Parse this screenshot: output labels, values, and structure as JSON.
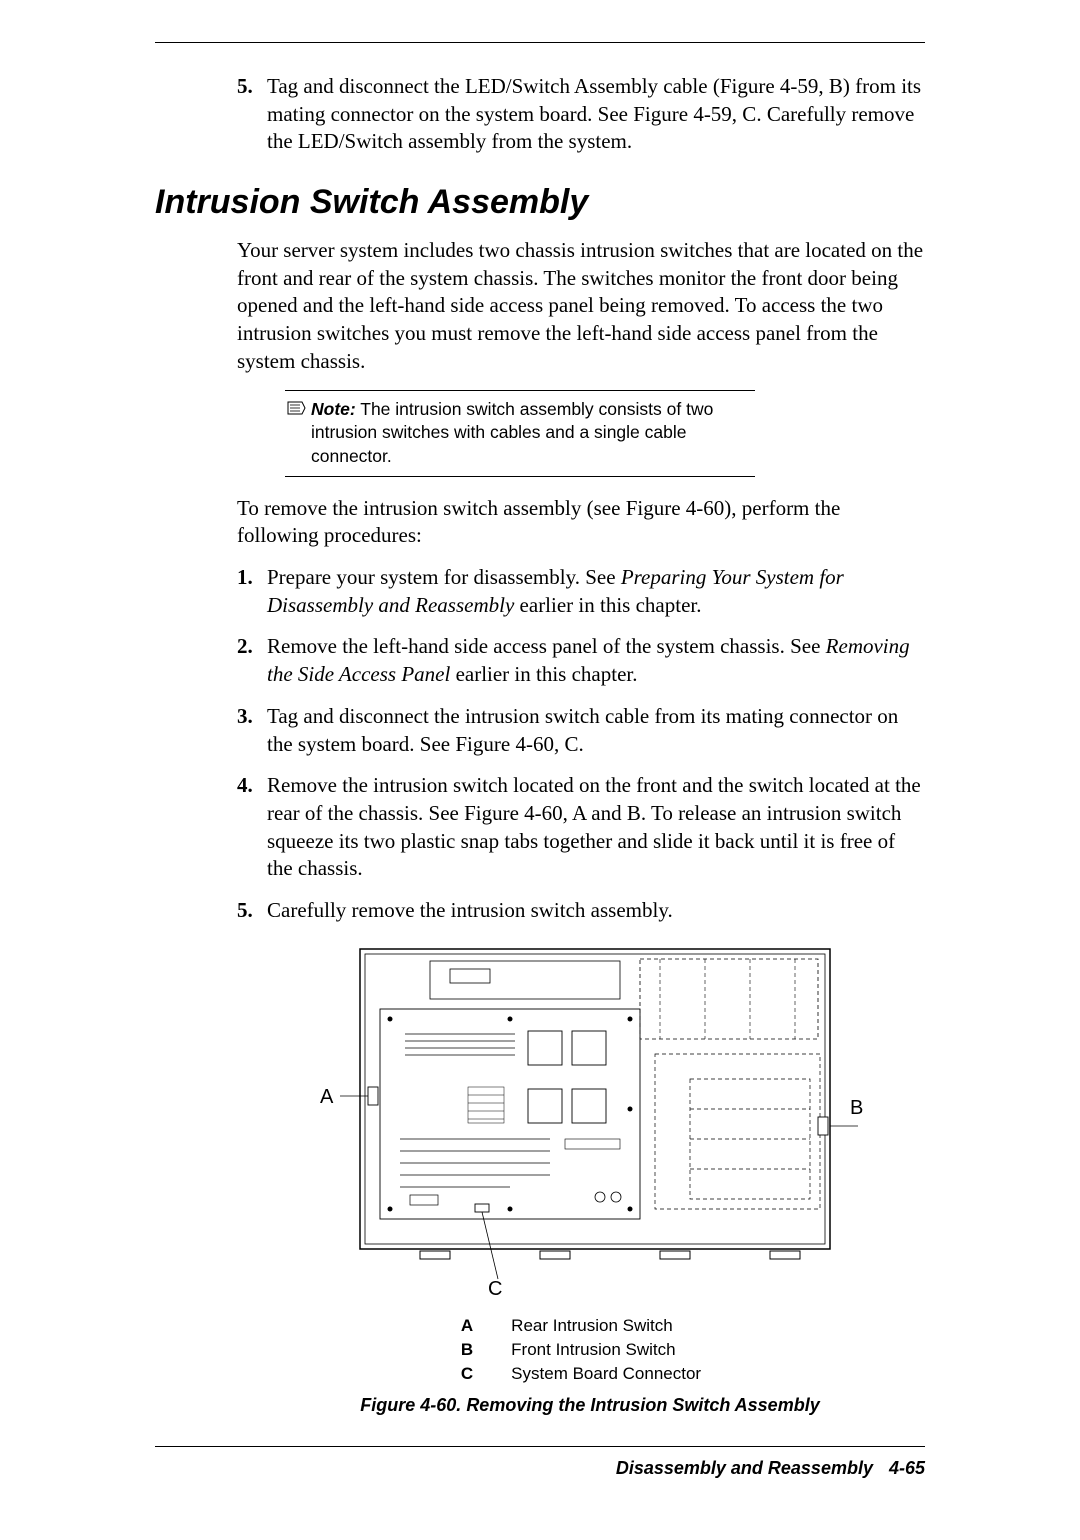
{
  "top_list": {
    "start": 5,
    "items": [
      {
        "num": "5.",
        "text": "Tag and disconnect the LED/Switch Assembly cable (Figure 4-59, B) from its mating connector on the system board. See Figure 4-59, C.  Carefully remove the LED/Switch assembly from the system."
      }
    ]
  },
  "section_title": "Intrusion Switch Assembly",
  "intro_para": "Your server system includes two chassis intrusion switches that are located on the front and rear of the system chassis. The switches monitor the front door being opened and the left-hand side access panel being removed. To access the two intrusion switches you must remove the left-hand side access panel from the system chassis.",
  "note": {
    "label": "Note:",
    "text": " The intrusion switch assembly consists of two intrusion switches with cables and a single cable connector."
  },
  "lead_para": "To remove the intrusion switch assembly (see Figure 4-60), perform the following procedures:",
  "steps": [
    {
      "num": "1.",
      "pre": "Prepare your system for disassembly. See ",
      "em": "Preparing Your System for Disassembly and Reassembly",
      "post": " earlier in this chapter."
    },
    {
      "num": "2.",
      "pre": "Remove the left-hand side access panel of the system chassis. See ",
      "em": "Removing the Side Access Panel",
      "post": " earlier in this chapter."
    },
    {
      "num": "3.",
      "pre": "Tag and disconnect the intrusion switch cable from its mating connector on the system board. See Figure 4-60, C.",
      "em": "",
      "post": ""
    },
    {
      "num": "4.",
      "pre": "Remove the intrusion switch located on the front and the switch located at the rear of the chassis. See Figure 4-60, A and B. To release an intrusion switch squeeze its two plastic snap tabs together and slide it back until it is free of the chassis.",
      "em": "",
      "post": ""
    },
    {
      "num": "5.",
      "pre": "Carefully remove the intrusion switch assembly.",
      "em": "",
      "post": ""
    }
  ],
  "figure": {
    "labels": {
      "A": "A",
      "B": "B",
      "C": "C"
    },
    "legend": [
      {
        "k": "A",
        "v": "Rear Intrusion Switch"
      },
      {
        "k": "B",
        "v": "Front Intrusion Switch"
      },
      {
        "k": "C",
        "v": "System Board Connector"
      }
    ],
    "caption": "Figure 4-60. Removing the Intrusion Switch Assembly",
    "style": {
      "stroke": "#000000",
      "dash": "4 3",
      "label_font": "Arial, Helvetica, sans-serif",
      "label_size": 20
    }
  },
  "footer": {
    "title": "Disassembly and Reassembly",
    "page": "4-65"
  }
}
